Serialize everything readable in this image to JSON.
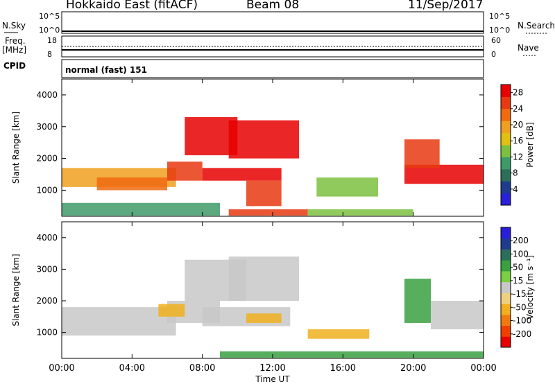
{
  "header": {
    "station": "Hokkaido East (fitACF)",
    "beam": "Beam 08",
    "date": "11/Sep/2017"
  },
  "strip_panels": {
    "nsky_label": "N.Sky",
    "nsearch_label": "N.Search",
    "nsky_ticks": [
      "10^5",
      "10^0"
    ],
    "nsearch_ticks": [
      "10^5",
      "10^0"
    ],
    "freq_label": "Freq.",
    "freq_unit": "[MHz]",
    "freq_ticks": [
      "18",
      "8"
    ],
    "nave_label": "Nave",
    "nave_ticks": [
      "60",
      "0"
    ],
    "cpid_label": "CPID",
    "cpid_value": "normal (fast) 151"
  },
  "colors": {
    "power_scale": [
      "#2a1fd8",
      "#1f3c8c",
      "#2c6e5a",
      "#3f9a6a",
      "#7cc040",
      "#e0c010",
      "#f0a020",
      "#f06a10",
      "#e83a10",
      "#e80000"
    ],
    "velocity_scale": [
      "#e80000",
      "#f04000",
      "#f07a10",
      "#f0b020",
      "#f0d080",
      "#c8c8c8",
      "#7ad040",
      "#3aa040",
      "#2c6e5a",
      "#1f3c8c",
      "#2a1fd8"
    ]
  },
  "chart_data": [
    {
      "type": "heatmap",
      "panel": "power",
      "xlabel": "Time UT",
      "ylabel": "Slant Range [km]",
      "x_ticks": [
        "00:00",
        "04:00",
        "08:00",
        "12:00",
        "16:00",
        "20:00",
        "00:00"
      ],
      "y_ticks": [
        "1000",
        "2000",
        "3000",
        "4000"
      ],
      "ylim": [
        180,
        4500
      ],
      "colorbar_label": "Power [dB]",
      "colorbar_ticks": [
        "4",
        "8",
        "12",
        "16",
        "20",
        "24",
        "28"
      ],
      "colorbar_range": [
        0,
        30
      ],
      "regions": [
        {
          "t": [
            0.0,
            6.5
          ],
          "r": [
            1100,
            1700
          ],
          "value": 18
        },
        {
          "t": [
            2.0,
            6.0
          ],
          "r": [
            1000,
            1400
          ],
          "value": 22
        },
        {
          "t": [
            6.0,
            8.0
          ],
          "r": [
            1300,
            1900
          ],
          "value": 26
        },
        {
          "t": [
            7.0,
            10.0
          ],
          "r": [
            2100,
            3300
          ],
          "value": 27
        },
        {
          "t": [
            8.0,
            12.5
          ],
          "r": [
            1300,
            1700
          ],
          "value": 29
        },
        {
          "t": [
            9.5,
            13.5
          ],
          "r": [
            2000,
            3200
          ],
          "value": 27
        },
        {
          "t": [
            10.5,
            12.5
          ],
          "r": [
            500,
            1300
          ],
          "value": 24
        },
        {
          "t": [
            9.5,
            14.0
          ],
          "r": [
            200,
            400
          ],
          "value": 25
        },
        {
          "t": [
            14.0,
            20.0
          ],
          "r": [
            200,
            400
          ],
          "value": 12
        },
        {
          "t": [
            14.5,
            18.0
          ],
          "r": [
            800,
            1400
          ],
          "value": 14
        },
        {
          "t": [
            19.5,
            24.0
          ],
          "r": [
            1200,
            1800
          ],
          "value": 27
        },
        {
          "t": [
            19.5,
            21.5
          ],
          "r": [
            1700,
            2600
          ],
          "value": 25
        },
        {
          "t": [
            0.0,
            9.0
          ],
          "r": [
            200,
            600
          ],
          "value": 10
        }
      ]
    },
    {
      "type": "heatmap",
      "panel": "velocity",
      "xlabel": "Time UT",
      "ylabel": "Slant Range [km]",
      "x_ticks": [
        "00:00",
        "04:00",
        "08:00",
        "12:00",
        "16:00",
        "20:00",
        "00:00"
      ],
      "y_ticks": [
        "1000",
        "2000",
        "3000",
        "4000"
      ],
      "ylim": [
        180,
        4500
      ],
      "colorbar_label": "Velocity [m s⁻¹]",
      "colorbar_ticks": [
        "200",
        "100",
        "50",
        "15",
        "-15",
        "-50",
        "-100",
        "-200"
      ],
      "regions": [
        {
          "t": [
            0.0,
            6.5
          ],
          "r": [
            900,
            1800
          ],
          "value": 0
        },
        {
          "t": [
            6.0,
            9.0
          ],
          "r": [
            1300,
            2000
          ],
          "value": 0
        },
        {
          "t": [
            7.0,
            10.5
          ],
          "r": [
            2000,
            3300
          ],
          "value": 0
        },
        {
          "t": [
            8.0,
            13.0
          ],
          "r": [
            1200,
            1800
          ],
          "value": -10
        },
        {
          "t": [
            9.5,
            13.5
          ],
          "r": [
            2000,
            3400
          ],
          "value": 0
        },
        {
          "t": [
            5.5,
            7.0
          ],
          "r": [
            1500,
            1900
          ],
          "value": -40
        },
        {
          "t": [
            10.5,
            12.5
          ],
          "r": [
            1300,
            1600
          ],
          "value": -40
        },
        {
          "t": [
            14.0,
            17.5
          ],
          "r": [
            800,
            1100
          ],
          "value": -40
        },
        {
          "t": [
            9.0,
            24.0
          ],
          "r": [
            200,
            400
          ],
          "value": 30
        },
        {
          "t": [
            19.5,
            21.0
          ],
          "r": [
            1300,
            2700
          ],
          "value": 30
        },
        {
          "t": [
            21.0,
            24.0
          ],
          "r": [
            1100,
            2000
          ],
          "value": 0
        }
      ]
    }
  ]
}
